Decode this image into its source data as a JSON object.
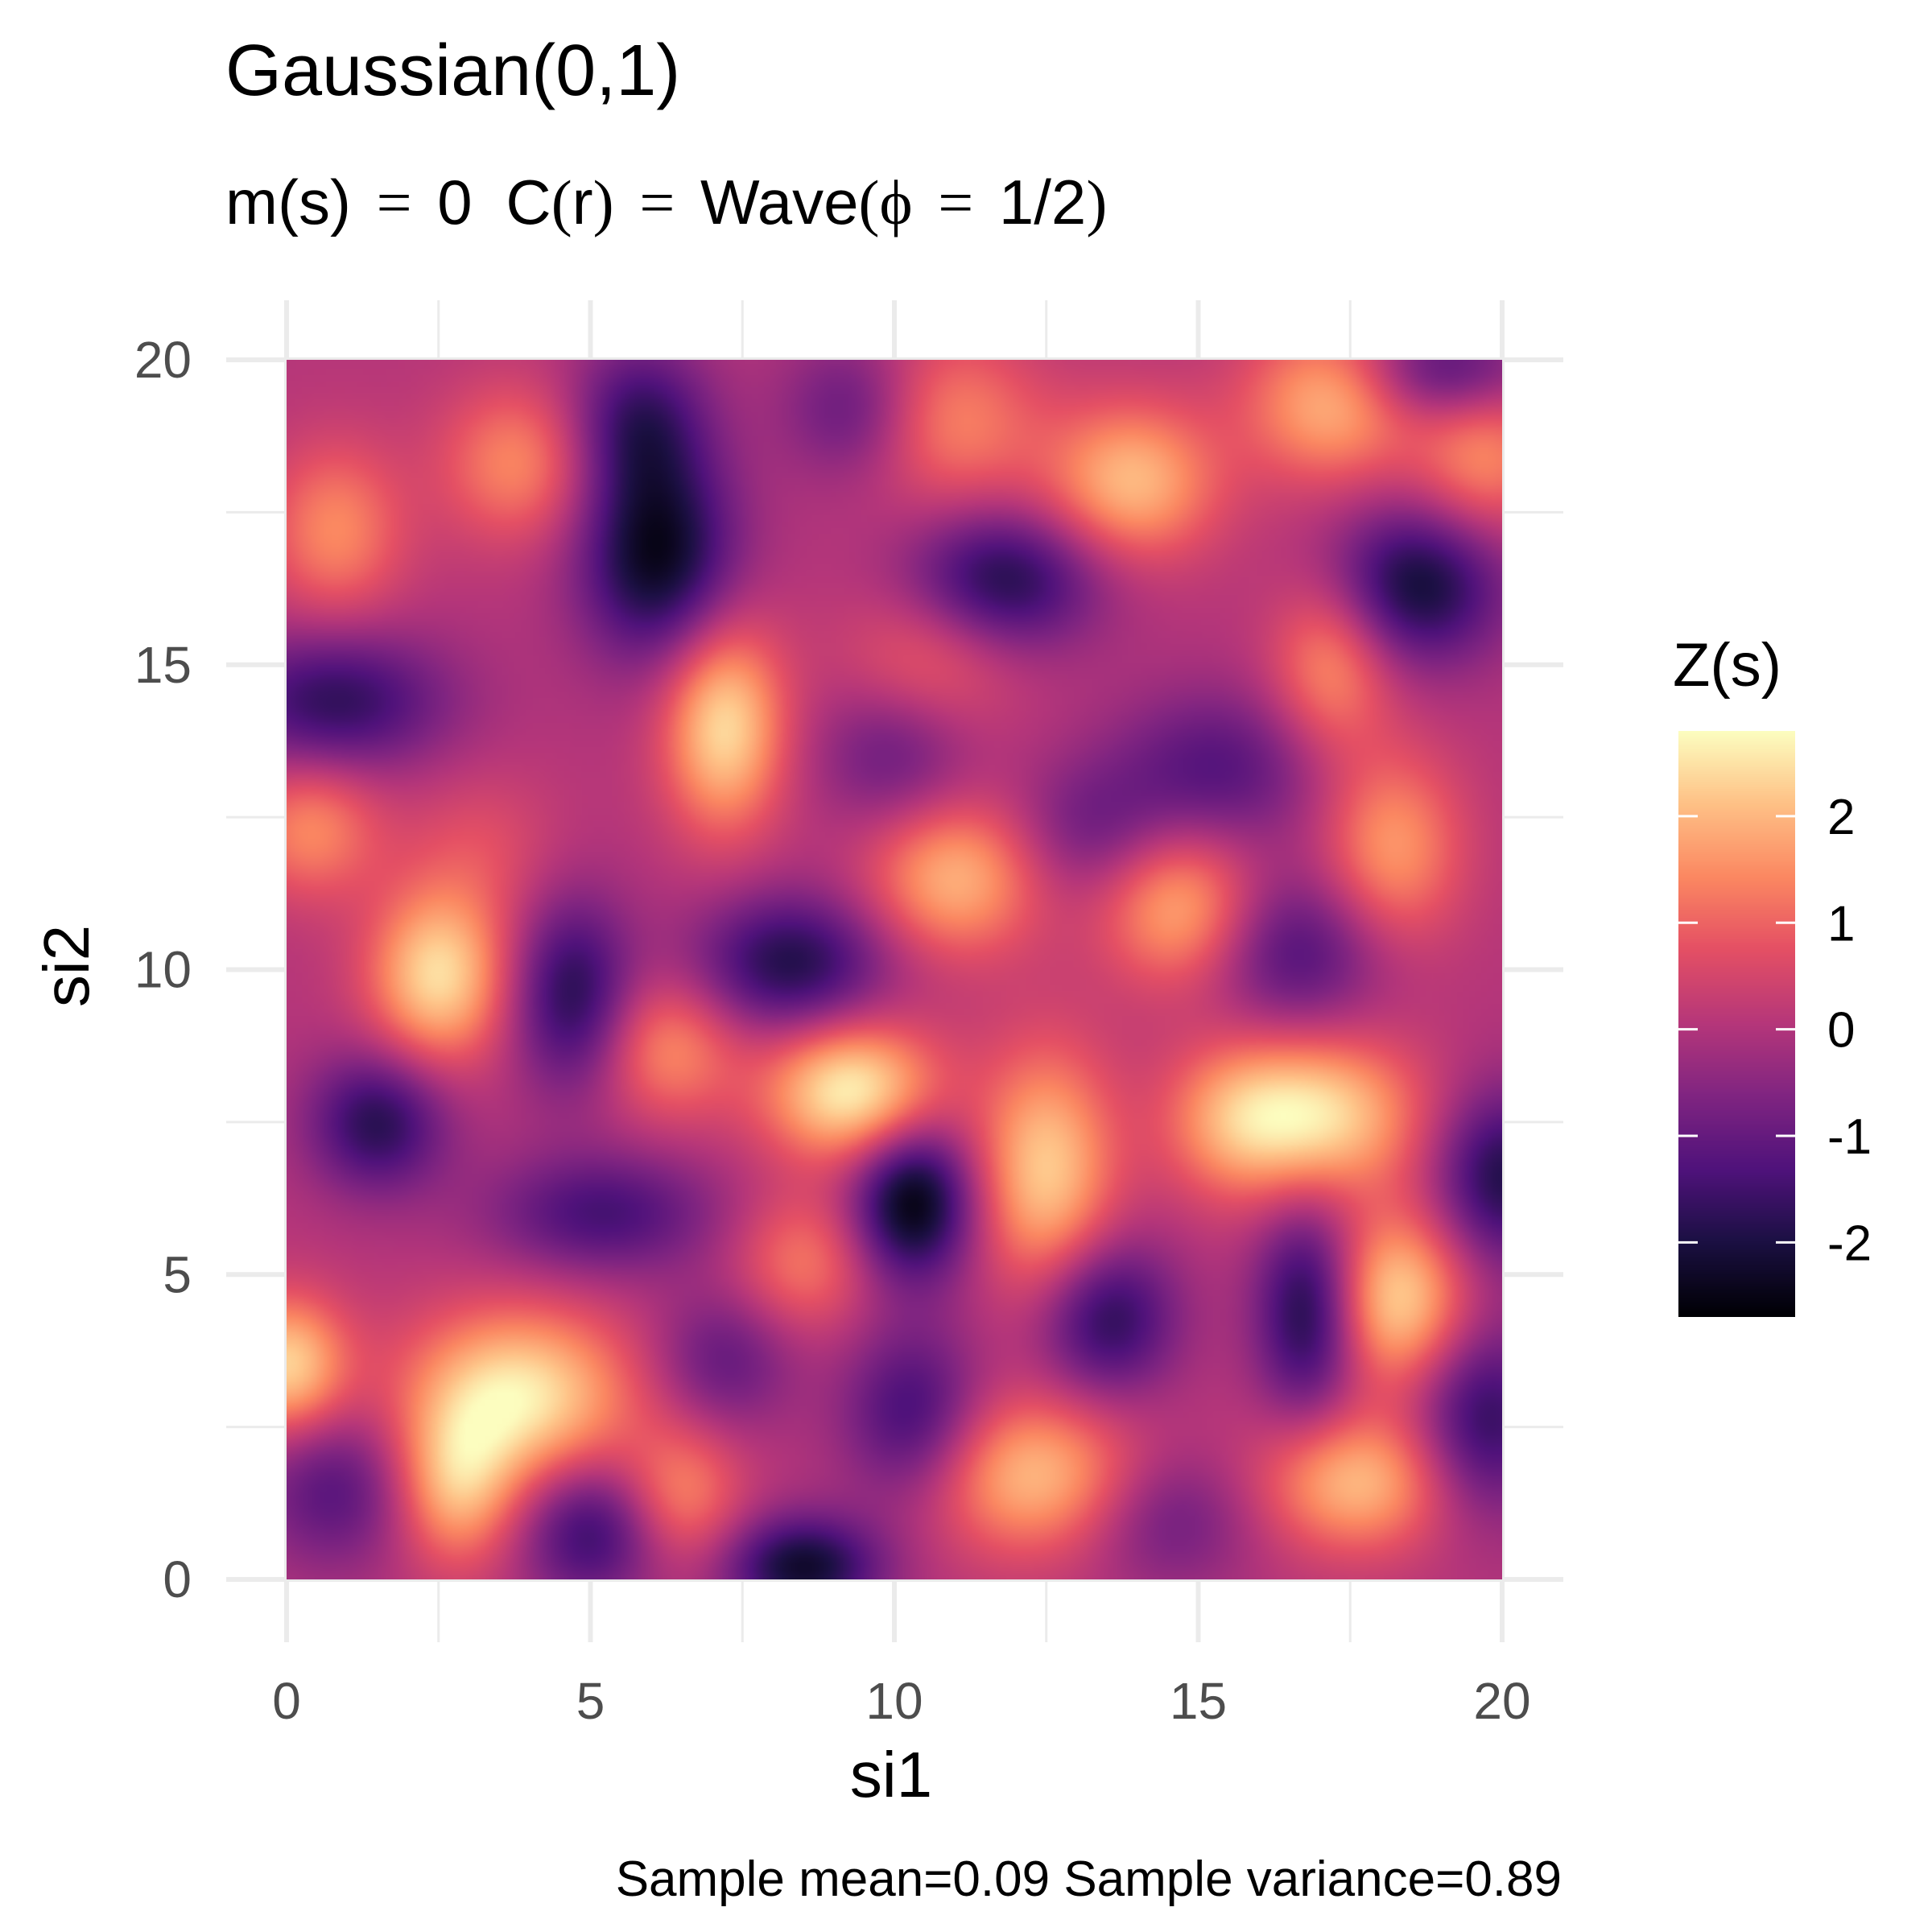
{
  "chart_data": {
    "type": "heatmap",
    "title": "Gaussian(0,1)",
    "subtitle": {
      "mean_part": "m(s)",
      "eq": "=",
      "mean_value": "0",
      "cov_part_name": "C",
      "cov_arg": "r",
      "cov_model": "Wave",
      "param_symbol": "ϕ",
      "param_value": "1/2"
    },
    "xlabel": "si1",
    "ylabel": "si2",
    "caption": "Sample mean=0.09 Sample variance=0.89",
    "xlim": [
      0,
      20
    ],
    "ylim": [
      0,
      20
    ],
    "x_ticks": [
      "0",
      "5",
      "10",
      "15",
      "20"
    ],
    "y_ticks": [
      "0",
      "5",
      "10",
      "15",
      "20"
    ],
    "x_tick_values": [
      0,
      5,
      10,
      15,
      20
    ],
    "y_tick_values": [
      0,
      5,
      10,
      15,
      20
    ],
    "grid": true,
    "colormap": "magma",
    "legend": {
      "title": "Z(s)",
      "position": "right",
      "range": [
        -2.7,
        2.8
      ],
      "ticks": [
        "2",
        "1",
        "0",
        "-1",
        "-2"
      ],
      "tick_values": [
        2,
        1,
        0,
        -1,
        -2
      ]
    },
    "field_features": [
      {
        "x": 6.1,
        "y": 16.8,
        "z": -2.5,
        "sx": 0.9,
        "sy": 1.2
      },
      {
        "x": 5.8,
        "y": 19.0,
        "z": -1.6,
        "sx": 0.8,
        "sy": 0.9
      },
      {
        "x": 11.8,
        "y": 16.4,
        "z": -2.0,
        "sx": 1.1,
        "sy": 0.8
      },
      {
        "x": 18.6,
        "y": 16.3,
        "z": -2.2,
        "sx": 1.0,
        "sy": 0.9
      },
      {
        "x": 19.0,
        "y": 19.8,
        "z": -1.5,
        "sx": 1.0,
        "sy": 0.6
      },
      {
        "x": 9.3,
        "y": 19.2,
        "z": -1.1,
        "sx": 0.8,
        "sy": 0.8
      },
      {
        "x": 0.8,
        "y": 14.4,
        "z": -1.8,
        "sx": 1.3,
        "sy": 0.8
      },
      {
        "x": 10.0,
        "y": 13.6,
        "z": -1.1,
        "sx": 0.9,
        "sy": 0.9
      },
      {
        "x": 15.3,
        "y": 13.3,
        "z": -1.3,
        "sx": 1.2,
        "sy": 0.9
      },
      {
        "x": 13.2,
        "y": 12.3,
        "z": -0.9,
        "sx": 0.9,
        "sy": 0.8
      },
      {
        "x": 8.3,
        "y": 10.1,
        "z": -2.0,
        "sx": 1.1,
        "sy": 0.8
      },
      {
        "x": 4.7,
        "y": 9.6,
        "z": -1.9,
        "sx": 0.7,
        "sy": 1.1
      },
      {
        "x": 16.6,
        "y": 10.3,
        "z": -1.4,
        "sx": 1.0,
        "sy": 0.9
      },
      {
        "x": 1.5,
        "y": 7.5,
        "z": -1.9,
        "sx": 0.8,
        "sy": 0.8
      },
      {
        "x": 10.3,
        "y": 6.2,
        "z": -2.7,
        "sx": 0.7,
        "sy": 0.9
      },
      {
        "x": 5.2,
        "y": 6.0,
        "z": -1.5,
        "sx": 1.3,
        "sy": 0.7
      },
      {
        "x": 13.5,
        "y": 4.3,
        "z": -1.9,
        "sx": 0.8,
        "sy": 0.9
      },
      {
        "x": 16.8,
        "y": 4.4,
        "z": -2.1,
        "sx": 0.6,
        "sy": 1.2
      },
      {
        "x": 20.0,
        "y": 6.6,
        "z": -2.0,
        "sx": 0.8,
        "sy": 1.0
      },
      {
        "x": 19.7,
        "y": 2.6,
        "z": -1.8,
        "sx": 0.8,
        "sy": 1.1
      },
      {
        "x": 10.3,
        "y": 2.7,
        "z": -1.6,
        "sx": 0.8,
        "sy": 1.0
      },
      {
        "x": 8.5,
        "y": 0.2,
        "z": -2.3,
        "sx": 0.9,
        "sy": 0.6
      },
      {
        "x": 5.0,
        "y": 0.8,
        "z": -1.7,
        "sx": 0.8,
        "sy": 0.8
      },
      {
        "x": 0.8,
        "y": 1.5,
        "z": -1.3,
        "sx": 0.9,
        "sy": 0.9
      },
      {
        "x": 7.2,
        "y": 3.6,
        "z": -1.1,
        "sx": 0.8,
        "sy": 0.8
      },
      {
        "x": 14.5,
        "y": 1.0,
        "z": -1.0,
        "sx": 1.0,
        "sy": 0.8
      },
      {
        "x": 7.2,
        "y": 14.0,
        "z": 2.4,
        "sx": 0.7,
        "sy": 1.2
      },
      {
        "x": 2.5,
        "y": 9.9,
        "z": 2.4,
        "sx": 0.8,
        "sy": 1.0
      },
      {
        "x": 9.3,
        "y": 8.0,
        "z": 2.7,
        "sx": 1.0,
        "sy": 0.8
      },
      {
        "x": 16.9,
        "y": 7.6,
        "z": 2.5,
        "sx": 1.2,
        "sy": 0.9
      },
      {
        "x": 12.5,
        "y": 6.7,
        "z": 2.2,
        "sx": 0.8,
        "sy": 1.4
      },
      {
        "x": 3.8,
        "y": 3.0,
        "z": 2.6,
        "sx": 1.3,
        "sy": 1.0
      },
      {
        "x": 2.8,
        "y": 1.5,
        "z": 1.8,
        "sx": 0.7,
        "sy": 0.9
      },
      {
        "x": 0.0,
        "y": 3.5,
        "z": 2.3,
        "sx": 0.7,
        "sy": 0.8
      },
      {
        "x": 18.3,
        "y": 4.6,
        "z": 2.3,
        "sx": 0.8,
        "sy": 1.0
      },
      {
        "x": 17.6,
        "y": 1.6,
        "z": 2.0,
        "sx": 1.1,
        "sy": 0.8
      },
      {
        "x": 12.3,
        "y": 1.7,
        "z": 2.0,
        "sx": 1.2,
        "sy": 0.9
      },
      {
        "x": 11.0,
        "y": 11.5,
        "z": 1.9,
        "sx": 1.0,
        "sy": 0.9
      },
      {
        "x": 14.7,
        "y": 11.0,
        "z": 1.8,
        "sx": 0.9,
        "sy": 0.9
      },
      {
        "x": 18.2,
        "y": 12.0,
        "z": 1.6,
        "sx": 0.8,
        "sy": 1.1
      },
      {
        "x": 17.2,
        "y": 15.0,
        "z": 1.5,
        "sx": 0.7,
        "sy": 1.0
      },
      {
        "x": 13.9,
        "y": 18.0,
        "z": 2.0,
        "sx": 1.0,
        "sy": 0.9
      },
      {
        "x": 17.2,
        "y": 19.3,
        "z": 1.9,
        "sx": 1.0,
        "sy": 0.9
      },
      {
        "x": 19.7,
        "y": 18.4,
        "z": 1.4,
        "sx": 0.8,
        "sy": 0.9
      },
      {
        "x": 11.0,
        "y": 19.0,
        "z": 1.3,
        "sx": 1.0,
        "sy": 1.0
      },
      {
        "x": 3.8,
        "y": 18.3,
        "z": 1.4,
        "sx": 0.9,
        "sy": 0.9
      },
      {
        "x": 0.8,
        "y": 17.2,
        "z": 1.4,
        "sx": 0.8,
        "sy": 1.0
      },
      {
        "x": 0.4,
        "y": 12.3,
        "z": 1.4,
        "sx": 0.8,
        "sy": 0.8
      },
      {
        "x": 6.3,
        "y": 8.7,
        "z": 1.4,
        "sx": 0.8,
        "sy": 0.8
      },
      {
        "x": 8.5,
        "y": 5.2,
        "z": 1.2,
        "sx": 0.8,
        "sy": 0.8
      },
      {
        "x": 6.5,
        "y": 1.4,
        "z": 1.3,
        "sx": 0.7,
        "sy": 0.8
      },
      {
        "x": 10.5,
        "y": 15.0,
        "z": 1.0,
        "sx": 1.0,
        "sy": 0.9
      },
      {
        "x": 15.5,
        "y": 7.5,
        "z": 1.0,
        "sx": 0.8,
        "sy": 0.9
      },
      {
        "x": 3.2,
        "y": 12.0,
        "z": 0.6,
        "sx": 0.9,
        "sy": 0.9
      }
    ]
  }
}
